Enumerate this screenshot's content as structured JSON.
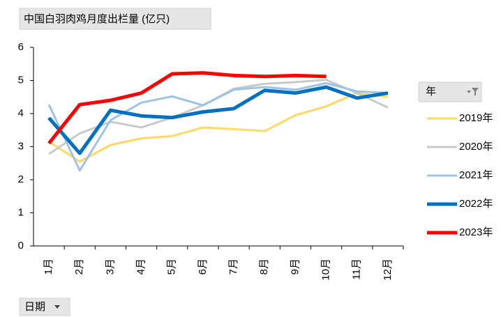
{
  "chart_data": {
    "type": "line",
    "title": "中国白羽肉鸡月度出栏量 (亿只)",
    "legend_title": "年",
    "x_field_button": "日期",
    "categories": [
      "1月",
      "2月",
      "3月",
      "4月",
      "5月",
      "6月",
      "7月",
      "8月",
      "9月",
      "10月",
      "11月",
      "12月"
    ],
    "ylim": [
      0,
      6
    ],
    "yticks": [
      0,
      1,
      2,
      3,
      4,
      5,
      6
    ],
    "legend_position": "right",
    "series": [
      {
        "name": "2019年",
        "color": "#ffd966",
        "line_width": 3,
        "values": [
          3.15,
          2.55,
          3.05,
          3.25,
          3.32,
          3.58,
          3.53,
          3.47,
          3.95,
          4.22,
          4.62,
          4.5
        ]
      },
      {
        "name": "2020年",
        "color": "#c9c9c9",
        "line_width": 3,
        "values": [
          2.78,
          3.4,
          3.75,
          3.58,
          3.88,
          4.25,
          4.75,
          4.9,
          4.95,
          5.02,
          4.62,
          4.18
        ]
      },
      {
        "name": "2021年",
        "color": "#9dc3e6",
        "line_width": 3,
        "values": [
          4.27,
          2.28,
          3.8,
          4.33,
          4.52,
          4.25,
          4.72,
          4.8,
          4.72,
          4.92,
          4.67,
          4.62
        ]
      },
      {
        "name": "2022年",
        "color": "#0070c0",
        "line_width": 5,
        "values": [
          3.87,
          2.8,
          4.1,
          3.93,
          3.88,
          4.05,
          4.15,
          4.7,
          4.62,
          4.8,
          4.47,
          4.62
        ]
      },
      {
        "name": "2023年",
        "color": "#ff0000",
        "line_width": 5,
        "values": [
          3.1,
          4.27,
          4.4,
          4.62,
          5.2,
          5.23,
          5.15,
          5.12,
          5.15,
          5.12,
          null,
          null
        ]
      }
    ]
  }
}
